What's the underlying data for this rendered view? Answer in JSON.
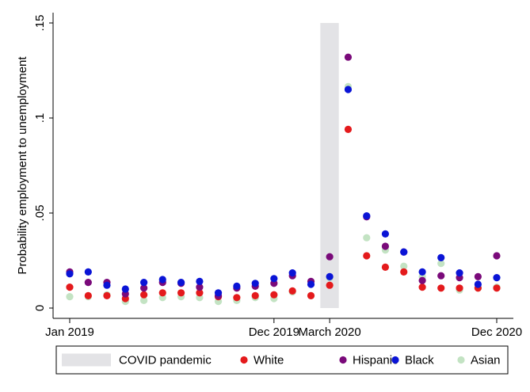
{
  "chart_data": {
    "type": "scatter",
    "title": "",
    "xlabel": "",
    "ylabel": "Probability employment to unemployment",
    "xlim": [
      2019.0,
      2020.917
    ],
    "ylim": [
      0,
      0.15
    ],
    "y_ticks": [
      {
        "value": 0,
        "label": "0"
      },
      {
        "value": 0.05,
        "label": ".05"
      },
      {
        "value": 0.1,
        "label": ".1"
      },
      {
        "value": 0.15,
        "label": ".15"
      }
    ],
    "x_ticks": [
      {
        "value": 2019.0,
        "label": "Jan 2019"
      },
      {
        "value": 2019.917,
        "label": "Dec 2019"
      },
      {
        "value": 2020.167,
        "label": "March 2020"
      },
      {
        "value": 2020.917,
        "label": "Dec 2020"
      }
    ],
    "shaded_region": {
      "label": "COVID pandemic",
      "x_start": 2020.125,
      "x_end": 2020.208,
      "color": "#e3e3e6"
    },
    "x": [
      2019.0,
      2019.083,
      2019.167,
      2019.25,
      2019.333,
      2019.417,
      2019.5,
      2019.583,
      2019.667,
      2019.75,
      2019.833,
      2019.917,
      2020.0,
      2020.083,
      2020.167,
      2020.25,
      2020.333,
      2020.417,
      2020.5,
      2020.583,
      2020.667,
      2020.75,
      2020.833,
      2020.917
    ],
    "series": [
      {
        "name": "White",
        "color": "#e41a1c",
        "values": [
          0.011,
          0.0065,
          0.0065,
          0.005,
          0.007,
          0.008,
          0.008,
          0.008,
          0.006,
          0.0055,
          0.0065,
          0.007,
          0.009,
          0.0065,
          0.012,
          0.094,
          0.0275,
          0.0215,
          0.019,
          0.011,
          0.0105,
          0.0105,
          0.0105,
          0.0105
        ]
      },
      {
        "name": "Hispanic",
        "color": "#7a0a7a",
        "values": [
          0.019,
          0.0135,
          0.0135,
          0.0075,
          0.0105,
          0.0135,
          0.013,
          0.011,
          0.0065,
          0.0105,
          0.0115,
          0.013,
          0.017,
          0.014,
          0.027,
          0.132,
          0.048,
          0.0325,
          0.0295,
          0.0145,
          0.017,
          0.016,
          0.0165,
          0.0275
        ]
      },
      {
        "name": "Black",
        "color": "#0a14d6",
        "values": [
          0.018,
          0.019,
          0.012,
          0.01,
          0.0135,
          0.015,
          0.0135,
          0.014,
          0.008,
          0.0115,
          0.013,
          0.0155,
          0.0185,
          0.0125,
          0.0165,
          0.115,
          0.0485,
          0.039,
          0.0295,
          0.019,
          0.0265,
          0.0185,
          0.0125,
          0.016
        ]
      },
      {
        "name": "Asian",
        "color": "#c3e3c3",
        "values": [
          0.006,
          0.006,
          0.007,
          0.0035,
          0.004,
          0.0055,
          0.006,
          0.0055,
          0.0035,
          0.004,
          0.0055,
          0.005,
          0.0085,
          0.0065,
          0.016,
          0.1165,
          0.037,
          0.0305,
          0.022,
          0.0165,
          0.0235,
          0.0095,
          0.0105,
          0.011
        ]
      }
    ],
    "legend": {
      "position": "bottom",
      "entries": [
        {
          "label": "COVID pandemic",
          "kind": "box"
        },
        {
          "label": "White",
          "kind": "dot"
        },
        {
          "label": "Hispanic",
          "kind": "dot"
        },
        {
          "label": "Black",
          "kind": "dot"
        },
        {
          "label": "Asian",
          "kind": "dot"
        }
      ]
    }
  }
}
